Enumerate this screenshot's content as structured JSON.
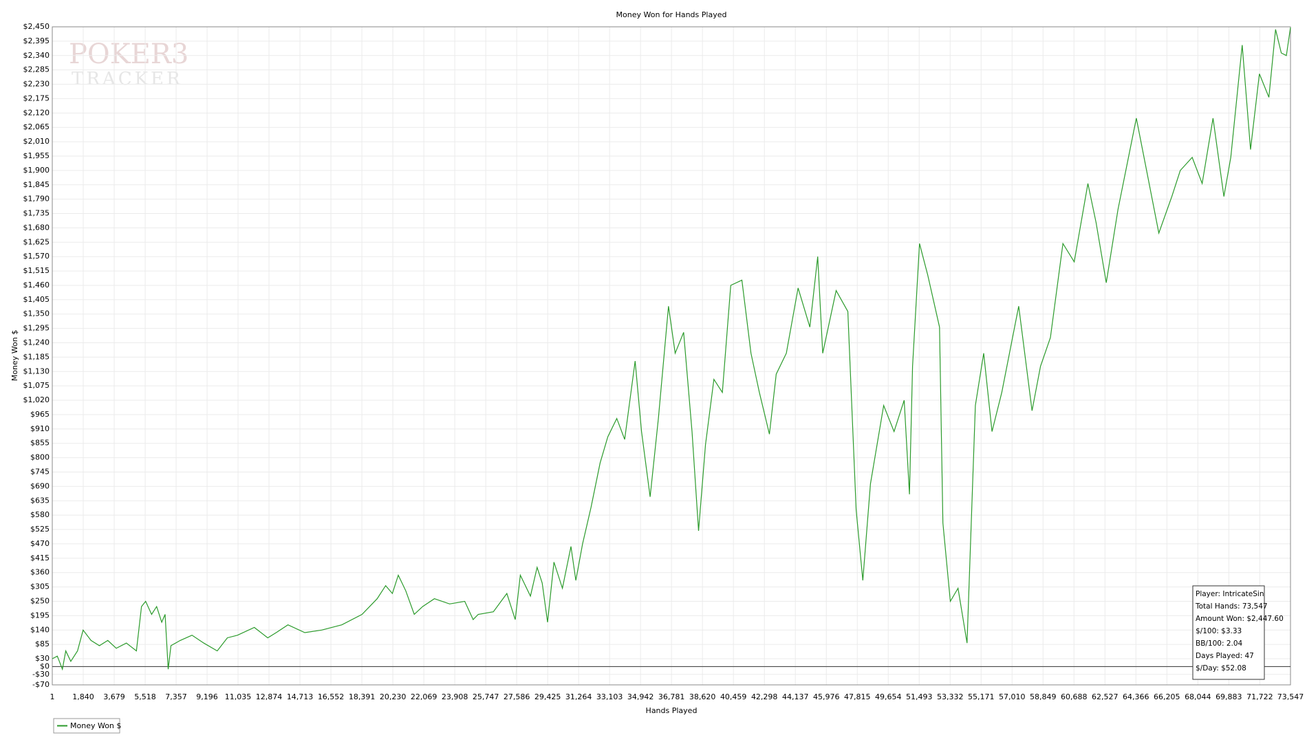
{
  "chart_data": {
    "type": "line",
    "title": "Money Won for Hands Played",
    "x_label": "Hands Played",
    "y_label": "Money Won $",
    "watermark": [
      "POKER3",
      "TRACKER"
    ],
    "grid": true,
    "zero_line": true,
    "legend": "bottom-left",
    "stats": [
      "Player: IntricateSin",
      "Total Hands: 73,547",
      "Amount Won: $2,447.60",
      "$/100: $3.33",
      "BB/100: 2.04",
      "Days Played: 47",
      "$/Day: $52.08"
    ],
    "xlim": [
      1,
      73547
    ],
    "ylim": [
      -70,
      2450
    ],
    "xticks": [
      1,
      {
        "value": 1840,
        "label": "1,840"
      },
      {
        "value": 3679,
        "label": "3,679"
      },
      {
        "value": 5518,
        "label": "5,518"
      },
      {
        "value": 7357,
        "label": "7,357"
      },
      {
        "value": 9196,
        "label": "9,196"
      },
      {
        "value": 11035,
        "label": "11,035"
      },
      {
        "value": 12874,
        "label": "12,874"
      },
      {
        "value": 14713,
        "label": "14,713"
      },
      {
        "value": 16552,
        "label": "16,552"
      },
      {
        "value": 18391,
        "label": "18,391"
      },
      {
        "value": 20230,
        "label": "20,230"
      },
      {
        "value": 22069,
        "label": "22,069"
      },
      {
        "value": 23908,
        "label": "23,908"
      },
      {
        "value": 25747,
        "label": "25,747"
      },
      {
        "value": 27586,
        "label": "27,586"
      },
      {
        "value": 29425,
        "label": "29,425"
      },
      {
        "value": 31264,
        "label": "31,264"
      },
      {
        "value": 33103,
        "label": "33,103"
      },
      {
        "value": 34942,
        "label": "34,942"
      },
      {
        "value": 36781,
        "label": "36,781"
      },
      {
        "value": 38620,
        "label": "38,620"
      },
      {
        "value": 40459,
        "label": "40,459"
      },
      {
        "value": 42298,
        "label": "42,298"
      },
      {
        "value": 44137,
        "label": "44,137"
      },
      {
        "value": 45976,
        "label": "45,976"
      },
      {
        "value": 47815,
        "label": "47,815"
      },
      {
        "value": 49654,
        "label": "49,654"
      },
      {
        "value": 51493,
        "label": "51,493"
      },
      {
        "value": 53332,
        "label": "53,332"
      },
      {
        "value": 55171,
        "label": "55,171"
      },
      {
        "value": 57010,
        "label": "57,010"
      },
      {
        "value": 58849,
        "label": "58,849"
      },
      {
        "value": 60688,
        "label": "60,688"
      },
      {
        "value": 62527,
        "label": "62,527"
      },
      {
        "value": 64366,
        "label": "64,366"
      },
      {
        "value": 66205,
        "label": "66,205"
      },
      {
        "value": 68044,
        "label": "68,044"
      },
      {
        "value": 69883,
        "label": "69,883"
      },
      {
        "value": 71722,
        "label": "71,722"
      },
      {
        "value": 73547,
        "label": "73,547"
      }
    ],
    "yticks": [
      {
        "value": 2450,
        "label": "$2,450"
      },
      {
        "value": 2395,
        "label": "$2,395"
      },
      {
        "value": 2340,
        "label": "$2,340"
      },
      {
        "value": 2285,
        "label": "$2,285"
      },
      {
        "value": 2230,
        "label": "$2,230"
      },
      {
        "value": 2175,
        "label": "$2,175"
      },
      {
        "value": 2120,
        "label": "$2,120"
      },
      {
        "value": 2065,
        "label": "$2,065"
      },
      {
        "value": 2010,
        "label": "$2,010"
      },
      {
        "value": 1955,
        "label": "$1,955"
      },
      {
        "value": 1900,
        "label": "$1,900"
      },
      {
        "value": 1845,
        "label": "$1,845"
      },
      {
        "value": 1790,
        "label": "$1,790"
      },
      {
        "value": 1735,
        "label": "$1,735"
      },
      {
        "value": 1680,
        "label": "$1,680"
      },
      {
        "value": 1625,
        "label": "$1,625"
      },
      {
        "value": 1570,
        "label": "$1,570"
      },
      {
        "value": 1515,
        "label": "$1,515"
      },
      {
        "value": 1460,
        "label": "$1,460"
      },
      {
        "value": 1405,
        "label": "$1,405"
      },
      {
        "value": 1350,
        "label": "$1,350"
      },
      {
        "value": 1295,
        "label": "$1,295"
      },
      {
        "value": 1240,
        "label": "$1,240"
      },
      {
        "value": 1185,
        "label": "$1,185"
      },
      {
        "value": 1130,
        "label": "$1,130"
      },
      {
        "value": 1075,
        "label": "$1,075"
      },
      {
        "value": 1020,
        "label": "$1,020"
      },
      {
        "value": 965,
        "label": "$965"
      },
      {
        "value": 910,
        "label": "$910"
      },
      {
        "value": 855,
        "label": "$855"
      },
      {
        "value": 800,
        "label": "$800"
      },
      {
        "value": 745,
        "label": "$745"
      },
      {
        "value": 690,
        "label": "$690"
      },
      {
        "value": 635,
        "label": "$635"
      },
      {
        "value": 580,
        "label": "$580"
      },
      {
        "value": 525,
        "label": "$525"
      },
      {
        "value": 470,
        "label": "$470"
      },
      {
        "value": 415,
        "label": "$415"
      },
      {
        "value": 360,
        "label": "$360"
      },
      {
        "value": 305,
        "label": "$305"
      },
      {
        "value": 250,
        "label": "$250"
      },
      {
        "value": 195,
        "label": "$195"
      },
      {
        "value": 140,
        "label": "$140"
      },
      {
        "value": 85,
        "label": "$85"
      },
      {
        "value": 30,
        "label": "$30"
      },
      {
        "value": 0,
        "label": "$0"
      },
      {
        "value": -30,
        "label": "-$30"
      },
      {
        "value": -70,
        "label": "-$70"
      }
    ],
    "x": [
      1,
      300,
      600,
      800,
      1100,
      1500,
      1832,
      2300,
      2800,
      3300,
      3800,
      4400,
      5000,
      5300,
      5547,
      5900,
      6200,
      6500,
      6700,
      6885,
      7050,
      7600,
      8300,
      9000,
      9800,
      10400,
      11000,
      12000,
      12800,
      13300,
      14000,
      15000,
      16000,
      17200,
      18400,
      19300,
      19800,
      20200,
      20555,
      21000,
      21500,
      22000,
      22700,
      23600,
      24500,
      25000,
      25300,
      26200,
      27000,
      27500,
      27800,
      28400,
      28800,
      29100,
      29420,
      29800,
      30300,
      30807,
      31100,
      31500,
      32000,
      32540,
      33000,
      33530,
      34000,
      34620,
      35000,
      35512,
      36000,
      36602,
      37000,
      37500,
      38000,
      38386,
      38800,
      39300,
      39800,
      40300,
      40961,
      41500,
      42000,
      42596,
      43000,
      43600,
      44300,
      45000,
      45466,
      45764,
      46560,
      47253,
      47748,
      48144,
      48600,
      49382,
      50000,
      50600,
      50917,
      51100,
      51511,
      52000,
      52700,
      52900,
      53344,
      53800,
      54335,
      54830,
      55325,
      55820,
      56400,
      57405,
      58197,
      58700,
      59287,
      60030,
      60700,
      61516,
      62000,
      62605,
      63300,
      64389,
      65000,
      65726,
      66500,
      67000,
      67707,
      68300,
      68946,
      69590,
      70000,
      70680,
      71175,
      71700,
      72264,
      72660,
      73000,
      73300,
      73547
    ],
    "series": [
      {
        "name": "Money Won $",
        "color": "#2a9a2a",
        "values": [
          30,
          40,
          -10,
          60,
          20,
          60,
          140,
          100,
          80,
          100,
          70,
          90,
          60,
          230,
          250,
          200,
          230,
          170,
          200,
          -10,
          80,
          100,
          120,
          90,
          60,
          110,
          120,
          150,
          110,
          130,
          160,
          130,
          140,
          160,
          200,
          260,
          310,
          280,
          350,
          290,
          200,
          230,
          260,
          240,
          250,
          180,
          200,
          210,
          280,
          180,
          350,
          270,
          380,
          320,
          170,
          400,
          300,
          460,
          330,
          470,
          610,
          780,
          880,
          950,
          870,
          1170,
          900,
          650,
          950,
          1380,
          1200,
          1280,
          900,
          520,
          850,
          1100,
          1050,
          1460,
          1480,
          1200,
          1050,
          890,
          1120,
          1200,
          1450,
          1300,
          1570,
          1200,
          1440,
          1360,
          600,
          330,
          700,
          1000,
          900,
          1020,
          660,
          1150,
          1620,
          1500,
          1300,
          550,
          250,
          300,
          90,
          1000,
          1200,
          900,
          1050,
          1380,
          980,
          1150,
          1260,
          1620,
          1550,
          1850,
          1700,
          1470,
          1750,
          2100,
          1900,
          1660,
          1800,
          1900,
          1950,
          1850,
          2100,
          1800,
          1950,
          2380,
          1980,
          2270,
          2180,
          2440,
          2350,
          2340,
          2447.6
        ]
      }
    ]
  }
}
